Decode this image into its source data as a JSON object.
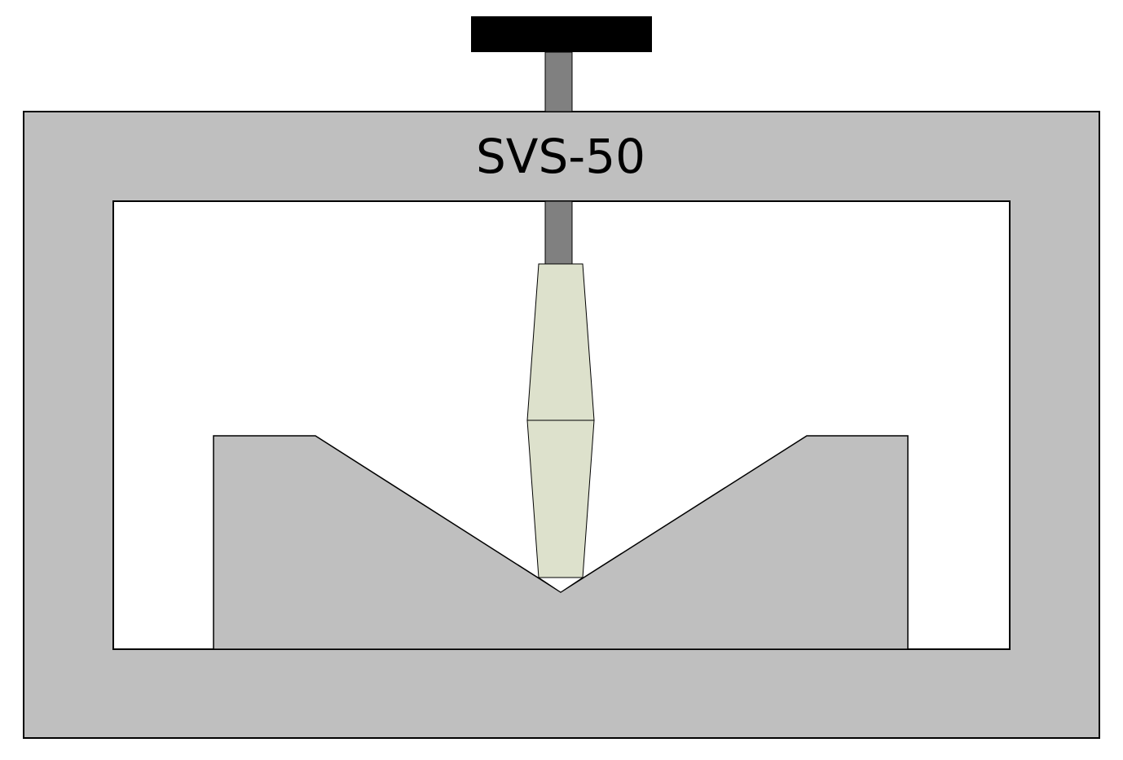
{
  "diagram": {
    "label": "SVS-50"
  },
  "colors": {
    "background": "#ffffff",
    "frame_fill": "#bfbfbf",
    "block_fill": "#bfbfbf",
    "rod_fill": "#808080",
    "handle_fill": "#000000",
    "specimen_fill": "#dde1cc",
    "outline": "#000000",
    "label_color": "#000000"
  }
}
